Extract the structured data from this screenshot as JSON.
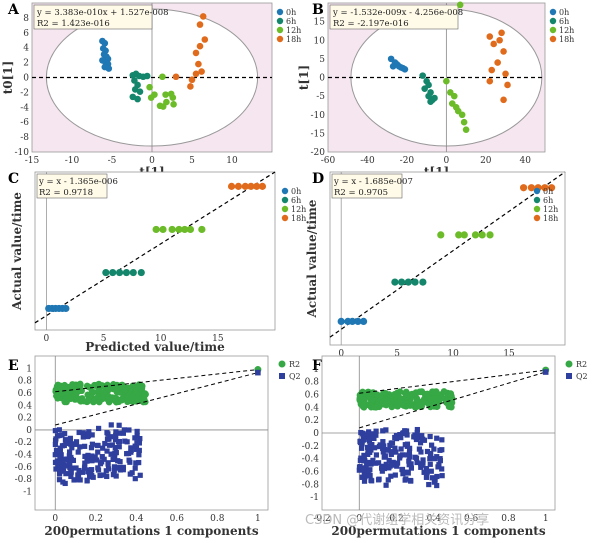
{
  "chart_data": [
    {
      "panel": "A",
      "type": "scatter",
      "xlim": [
        -15,
        15
      ],
      "ylim": [
        -10,
        10
      ],
      "xticks": [
        -15,
        -10,
        -5,
        0,
        5,
        10
      ],
      "yticks": [
        -10,
        -8,
        -6,
        -4,
        -2,
        0,
        2,
        4,
        6,
        8
      ],
      "xtick_labels": [
        "-15",
        "-10",
        "-5",
        "0",
        "5",
        "10"
      ],
      "ytick_labels": [
        "-10",
        "-8",
        "-6",
        "-4",
        "-2",
        "0",
        "2",
        "4",
        "6",
        "8"
      ],
      "xlabel": "t[1]",
      "ylabel": "t0[1]",
      "equation": [
        "y = 3.383e-010x + 1.527e-008",
        "R2 = 1.423e-016"
      ],
      "legend": [
        "0h",
        "6h",
        "12h",
        "18h"
      ],
      "series": [
        {
          "name": "0h",
          "points": [
            [
              -6.2,
              4.9
            ],
            [
              -5.9,
              4.6
            ],
            [
              -6.1,
              3.9
            ],
            [
              -5.8,
              3.6
            ],
            [
              -6,
              3.1
            ],
            [
              -5.7,
              2.8
            ],
            [
              -5.5,
              2.5
            ],
            [
              -6.2,
              2.3
            ],
            [
              -5.8,
              2.0
            ],
            [
              -5.5,
              1.8
            ],
            [
              -5.9,
              1.4
            ],
            [
              -5.4,
              1.2
            ]
          ]
        },
        {
          "name": "6h",
          "points": [
            [
              -2.4,
              0.3
            ],
            [
              -2,
              0.5
            ],
            [
              -1.6,
              0.2
            ],
            [
              -1.1,
              0.1
            ],
            [
              -0.6,
              0.2
            ],
            [
              -2.2,
              -0.4
            ],
            [
              -1.8,
              -1.0
            ],
            [
              -2.1,
              -1.6
            ],
            [
              -1.5,
              -1.9
            ],
            [
              -2.4,
              -2.6
            ],
            [
              -1.8,
              -2.9
            ]
          ]
        },
        {
          "name": "12h",
          "points": [
            [
              -0.3,
              -1.3
            ],
            [
              0.3,
              -2.3
            ],
            [
              -0.1,
              -2.7
            ],
            [
              1.7,
              -2.3
            ],
            [
              1.0,
              -3.8
            ],
            [
              1.4,
              -3.9
            ],
            [
              2.7,
              -3.6
            ],
            [
              2.6,
              -2.7
            ],
            [
              1.8,
              -3.3
            ],
            [
              1.3,
              0.1
            ],
            [
              2.4,
              -2.2
            ]
          ]
        },
        {
          "name": "18h",
          "points": [
            [
              6.4,
              8.2
            ],
            [
              6.0,
              7.1
            ],
            [
              6.6,
              5.1
            ],
            [
              6.0,
              4.2
            ],
            [
              5.5,
              3.3
            ],
            [
              5.8,
              1.8
            ],
            [
              6.2,
              0.8
            ],
            [
              5.5,
              0.5
            ],
            [
              5.0,
              -0.3
            ],
            [
              4.8,
              -1.2
            ],
            [
              3.0,
              0.1
            ]
          ]
        }
      ]
    },
    {
      "panel": "B",
      "type": "scatter",
      "xlim": [
        -60,
        50
      ],
      "ylim": [
        -20,
        20
      ],
      "xticks": [
        -60,
        -40,
        -20,
        0,
        20,
        40
      ],
      "yticks": [
        -20,
        -15,
        -10,
        -5,
        0,
        5,
        10,
        15
      ],
      "xtick_labels": [
        "-60",
        "-40",
        "-20",
        "0",
        "20",
        "40"
      ],
      "ytick_labels": [
        "-20",
        "-15",
        "-10",
        "-5",
        "0",
        "5",
        "10",
        "15"
      ],
      "xlabel": "t[1]",
      "ylabel": "t[1]",
      "equation": [
        "y = -1.532e-009x - 4.256e-008",
        "R2 = -2.197e-016"
      ],
      "legend": [
        "0h",
        "6h",
        "12h",
        "18h"
      ],
      "series": [
        {
          "name": "0h",
          "points": [
            [
              -28,
              5
            ],
            [
              -26,
              4
            ],
            [
              -25,
              3.5
            ],
            [
              -24,
              3
            ],
            [
              -22,
              2.5
            ],
            [
              -27,
              3
            ],
            [
              -23,
              2.7
            ],
            [
              -21,
              2.2
            ]
          ]
        },
        {
          "name": "6h",
          "points": [
            [
              -12,
              0.5
            ],
            [
              -10,
              -1
            ],
            [
              -9,
              -2
            ],
            [
              -11,
              -3
            ],
            [
              -8,
              -4
            ],
            [
              -9,
              -5
            ],
            [
              -7,
              -6
            ],
            [
              -6,
              -5.5
            ],
            [
              -8,
              -6.5
            ]
          ]
        },
        {
          "name": "12h",
          "points": [
            [
              7,
              19.5
            ],
            [
              0,
              -1
            ],
            [
              2,
              -4
            ],
            [
              4,
              -5
            ],
            [
              3,
              -7
            ],
            [
              5,
              -8
            ],
            [
              6,
              -9
            ],
            [
              8,
              -10
            ],
            [
              9,
              -12
            ],
            [
              10,
              -14
            ]
          ]
        },
        {
          "name": "18h",
          "points": [
            [
              22,
              11
            ],
            [
              24,
              9
            ],
            [
              28,
              12
            ],
            [
              27,
              10
            ],
            [
              26,
              4
            ],
            [
              29,
              7
            ],
            [
              30,
              1
            ],
            [
              31,
              -2
            ],
            [
              29,
              -6
            ],
            [
              22,
              -1
            ],
            [
              23,
              2
            ]
          ]
        }
      ]
    },
    {
      "panel": "C",
      "type": "scatter",
      "xlim": [
        -1,
        20
      ],
      "ylim": [
        -2,
        20
      ],
      "xticks": [
        0,
        5,
        10,
        15
      ],
      "xtick_labels": [
        "0",
        "5",
        "10",
        "15"
      ],
      "xlabel": "Predicted value/time",
      "ylabel": "Actual value/time",
      "equation": [
        "y = x - 1.365e-006",
        "R2 = 0.9718"
      ],
      "legend": [
        "0h",
        "6h",
        "12h",
        "18h"
      ],
      "series": [
        {
          "name": "0h",
          "points": [
            [
              0.2,
              1
            ],
            [
              0.5,
              1
            ],
            [
              0.8,
              1
            ],
            [
              1.1,
              1
            ],
            [
              1.4,
              1
            ],
            [
              1.7,
              1
            ]
          ]
        },
        {
          "name": "6h",
          "points": [
            [
              5.2,
              6
            ],
            [
              5.8,
              6
            ],
            [
              6.4,
              6
            ],
            [
              7.0,
              6
            ],
            [
              7.6,
              6
            ],
            [
              8.3,
              6
            ]
          ]
        },
        {
          "name": "12h",
          "points": [
            [
              9.6,
              12
            ],
            [
              10.2,
              12
            ],
            [
              11.0,
              12
            ],
            [
              11.6,
              12
            ],
            [
              12.1,
              12
            ],
            [
              12.6,
              12
            ],
            [
              13.6,
              12
            ]
          ]
        },
        {
          "name": "18h",
          "points": [
            [
              16.2,
              18
            ],
            [
              16.8,
              18
            ],
            [
              17.4,
              18
            ],
            [
              17.9,
              18
            ],
            [
              18.4,
              18
            ],
            [
              18.9,
              18
            ]
          ]
        }
      ]
    },
    {
      "panel": "D",
      "type": "scatter",
      "xlim": [
        -1,
        20
      ],
      "ylim": [
        -2,
        20
      ],
      "xticks": [
        0,
        5,
        10,
        15
      ],
      "xtick_labels": [
        "0",
        "5",
        "10",
        "15"
      ],
      "xlabel": "Predicted value/time",
      "ylabel": "Actual value/time",
      "equation": [
        "y = x - 1.685e-007",
        "R2 = 0.9705"
      ],
      "legend": [
        "0h",
        "6h",
        "12h",
        "18h"
      ],
      "series": [
        {
          "name": "0h",
          "points": [
            [
              0,
              1
            ],
            [
              0.6,
              1
            ],
            [
              1.0,
              1
            ],
            [
              1.5,
              1
            ],
            [
              2.0,
              1
            ]
          ]
        },
        {
          "name": "6h",
          "points": [
            [
              4.8,
              6
            ],
            [
              5.4,
              6
            ],
            [
              6.0,
              6
            ],
            [
              6.6,
              6
            ],
            [
              7.3,
              6
            ]
          ]
        },
        {
          "name": "12h",
          "points": [
            [
              8.9,
              12
            ],
            [
              10.5,
              12
            ],
            [
              11.0,
              12
            ],
            [
              12.0,
              12
            ],
            [
              12.6,
              12
            ],
            [
              13.3,
              12
            ]
          ]
        },
        {
          "name": "18h",
          "points": [
            [
              16.3,
              18
            ],
            [
              17.0,
              18
            ],
            [
              17.6,
              18
            ],
            [
              18.2,
              18
            ],
            [
              18.8,
              18
            ]
          ]
        }
      ]
    },
    {
      "panel": "E",
      "type": "scatter",
      "xlim": [
        -0.1,
        1.05
      ],
      "ylim": [
        -1.3,
        1.2
      ],
      "xticks": [
        0,
        0.2,
        0.4,
        0.6,
        0.8,
        1
      ],
      "yticks": [
        -1,
        -0.9,
        -0.8,
        -0.7,
        -0.6,
        -0.5,
        -0.4,
        -0.3,
        -0.2,
        -0.1,
        0,
        0.1,
        0.2,
        0.3,
        0.4,
        0.5,
        0.6,
        0.7,
        0.8,
        0.9,
        1
      ],
      "xtick_labels": [
        "0",
        "0.2",
        "0.4",
        "0.6",
        "0.8",
        "1"
      ],
      "ytick_labels": [
        "-1",
        "-0.9",
        "-0.8",
        "-0.7",
        "-0.6",
        "-0.5",
        "-0.4",
        "-0.3",
        "-0.2",
        "-0.1",
        "0",
        "0.1",
        "0.2",
        "0.3",
        "0.4",
        "0.5",
        "0.6",
        "0.7",
        "0.8",
        "0.9",
        "1"
      ],
      "xlabel": "200permutations 1 components",
      "legend": [
        "R2",
        "Q2"
      ],
      "final": {
        "R2": [
          1,
          0.98
        ],
        "Q2": [
          1,
          0.93
        ]
      },
      "R2_cloud": {
        "count": 200,
        "x_range": [
          0,
          0.45
        ],
        "y_range": [
          0.45,
          0.75
        ]
      },
      "Q2_cloud": {
        "count": 200,
        "x_range": [
          0,
          0.42
        ],
        "y_range": [
          -1.2,
          0.1
        ]
      }
    },
    {
      "panel": "F",
      "type": "scatter",
      "xlim": [
        -0.2,
        1.05
      ],
      "ylim": [
        -1.2,
        1.2
      ],
      "xticks": [
        -0.2,
        0,
        0.2,
        0.4,
        0.6,
        0.8,
        1
      ],
      "yticks": [
        -1,
        -0.9,
        -0.8,
        -0.7,
        -0.6,
        -0.5,
        -0.4,
        -0.3,
        -0.2,
        -0.1,
        0,
        0.1,
        0.2,
        0.3,
        0.4,
        0.5,
        0.6,
        0.7,
        0.8,
        0.9,
        1
      ],
      "xtick_labels": [
        "-0.2",
        "0",
        "0.2",
        "0.4",
        "0.6",
        "0.8",
        "1"
      ],
      "ytick_labels": [
        "-1",
        "-0.9",
        "-0.8",
        "-0.7",
        "-0.6",
        "-0.5",
        "-0.4",
        "-0.3",
        "-0.2",
        "-0.1",
        "0",
        "0.1",
        "0.2",
        "0.3",
        "0.4",
        "0.5",
        "0.6",
        "0.7",
        "0.8",
        "0.9",
        "1"
      ],
      "xlabel": "200permutations 1 components",
      "legend": [
        "R2",
        "Q2"
      ],
      "final": {
        "R2": [
          1,
          0.98
        ],
        "Q2": [
          1,
          0.95
        ]
      },
      "R2_cloud": {
        "count": 200,
        "x_range": [
          0,
          0.5
        ],
        "y_range": [
          0.4,
          0.65
        ]
      },
      "Q2_cloud": {
        "count": 200,
        "x_range": [
          0,
          0.45
        ],
        "y_range": [
          -1.1,
          0.1
        ]
      }
    }
  ],
  "colors": {
    "0h": "#1f77b4",
    "6h": "#13866b",
    "12h": "#6cbb28",
    "18h": "#e06b1c",
    "R2": "#36a845",
    "Q2": "#2f3f9e",
    "pink": "#f6e6f0"
  },
  "watermark": "CSDN @代谢组学相关资讯分享"
}
